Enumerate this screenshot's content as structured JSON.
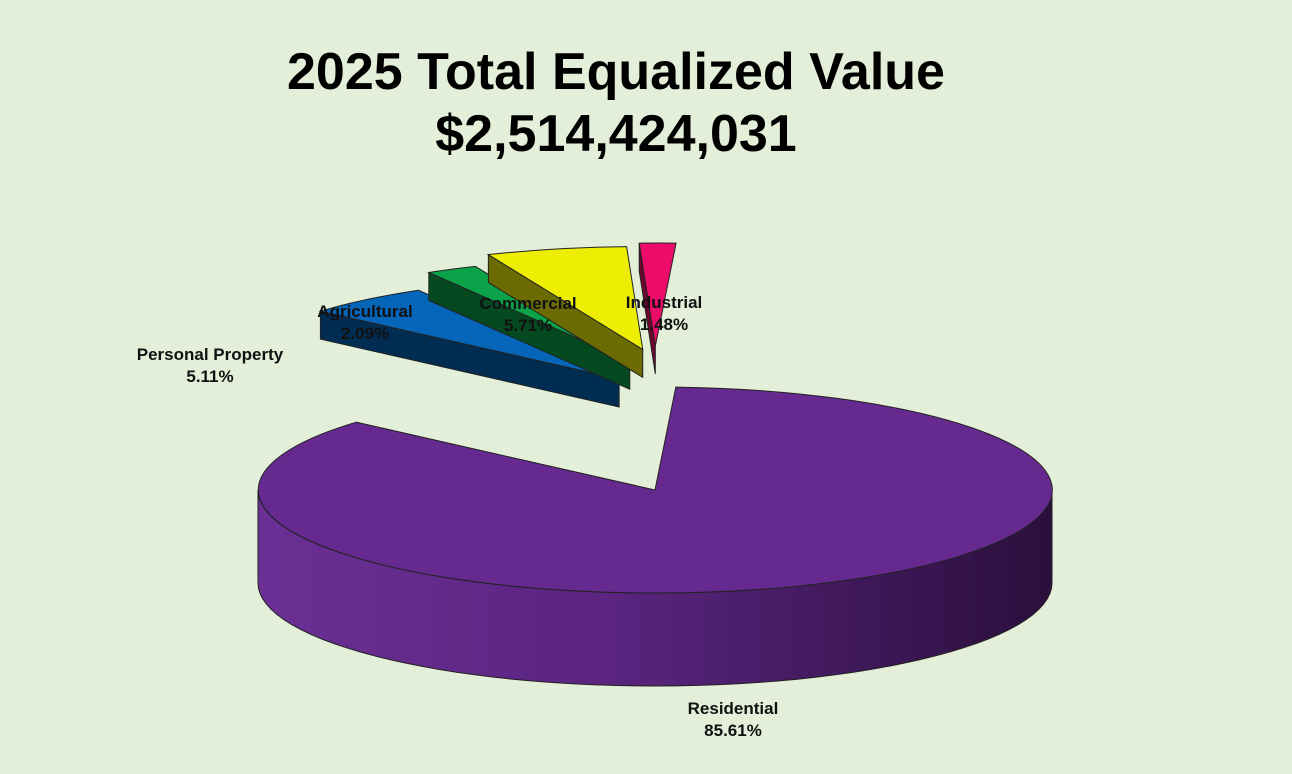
{
  "chart_data": {
    "type": "pie",
    "title": "2025 Total Equalized Value",
    "subtitle": "$2,514,424,031",
    "slices": [
      {
        "label": "Residential",
        "value": 85.61,
        "value_label": "85.61%",
        "color": "#66298f",
        "exploded": false
      },
      {
        "label": "Personal Property",
        "value": 5.11,
        "value_label": "5.11%",
        "color": "#0565b8",
        "exploded": true
      },
      {
        "label": "Agricultural",
        "value": 2.09,
        "value_label": "2.09%",
        "color": "#0aa34a",
        "exploded": true
      },
      {
        "label": "Commercial",
        "value": 5.71,
        "value_label": "5.71%",
        "color": "#eeee05",
        "exploded": true
      },
      {
        "label": "Industrial",
        "value": 1.48,
        "value_label": "1.48%",
        "color": "#ee0c6a",
        "exploded": true
      }
    ],
    "legend": "none",
    "style": "3d-exploded"
  }
}
